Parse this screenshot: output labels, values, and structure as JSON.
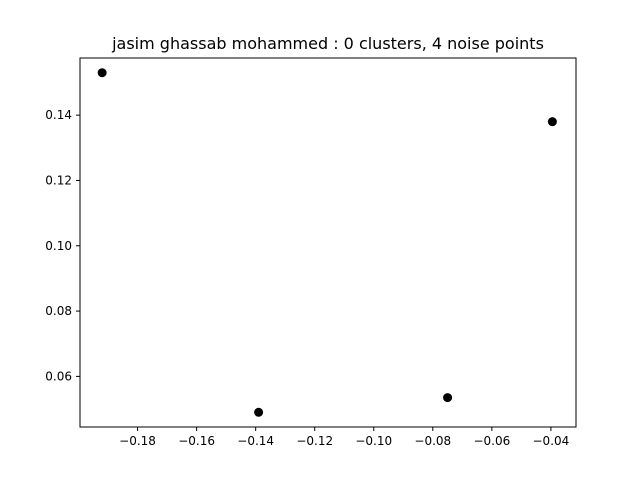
{
  "chart_data": {
    "type": "scatter",
    "title": "jasim ghassab mohammed : 0 clusters, 4 noise points",
    "xlabel": "",
    "ylabel": "",
    "xlim": [
      -0.1995,
      -0.0315
    ],
    "ylim": [
      0.0445,
      0.1575
    ],
    "xticks": [
      -0.18,
      -0.16,
      -0.14,
      -0.12,
      -0.1,
      -0.08,
      -0.06,
      -0.04
    ],
    "xtick_labels": [
      "−0.18",
      "−0.16",
      "−0.14",
      "−0.12",
      "−0.10",
      "−0.08",
      "−0.06",
      "−0.04"
    ],
    "yticks": [
      0.06,
      0.08,
      0.1,
      0.12,
      0.14
    ],
    "ytick_labels": [
      "0.06",
      "0.08",
      "0.10",
      "0.12",
      "0.14"
    ],
    "grid": false,
    "series": [
      {
        "color": "#000000",
        "points": [
          {
            "x": -0.192,
            "y": 0.153
          },
          {
            "x": -0.139,
            "y": 0.049
          },
          {
            "x": -0.075,
            "y": 0.0535
          },
          {
            "x": -0.0395,
            "y": 0.138
          }
        ]
      }
    ]
  }
}
